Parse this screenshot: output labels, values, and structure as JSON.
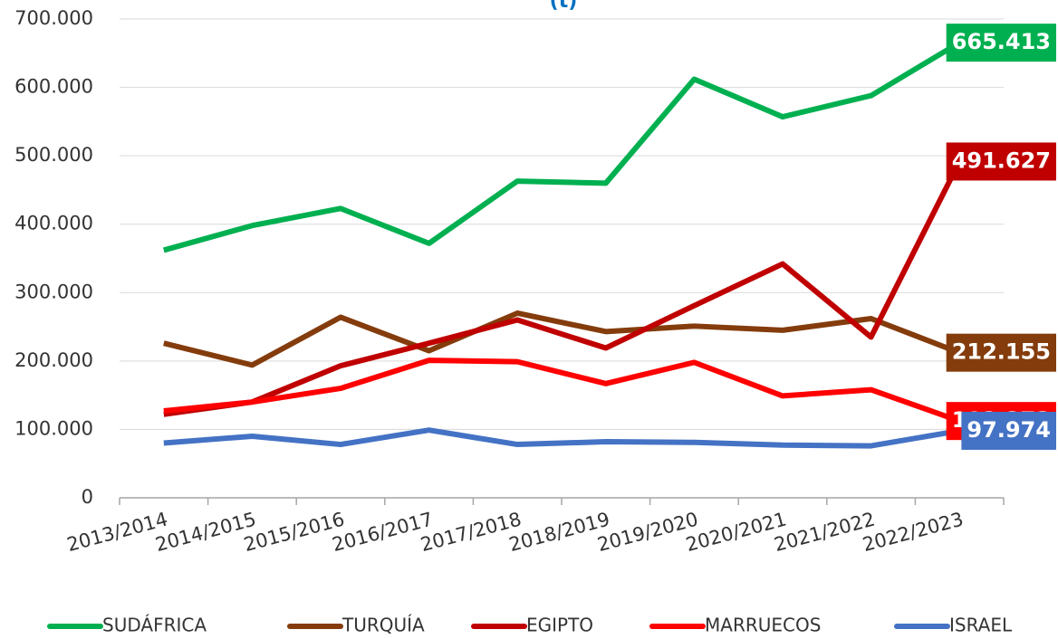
{
  "chart_data": {
    "type": "line",
    "title": "(t)",
    "categories": [
      "2013/2014",
      "2014/2015",
      "2015/2016",
      "2016/2017",
      "2017/2018",
      "2018/2019",
      "2019/2020",
      "2020/2021",
      "2021/2022",
      "2022/2023"
    ],
    "series": [
      {
        "name": "SUDÁFRICA",
        "color": "#00b050",
        "values": [
          362000,
          398000,
          423000,
          372000,
          463000,
          460000,
          612000,
          557000,
          588000,
          665413
        ],
        "value_labels": [
          null,
          null,
          null,
          null,
          null,
          null,
          null,
          null,
          null,
          "665.413"
        ]
      },
      {
        "name": "TURQUÍA",
        "color": "#843c0c",
        "values": [
          226000,
          194000,
          264000,
          215000,
          270000,
          243000,
          251000,
          245000,
          262000,
          212155
        ],
        "value_labels": [
          null,
          null,
          null,
          null,
          null,
          null,
          null,
          null,
          null,
          "212.155"
        ]
      },
      {
        "name": "EGIPTO",
        "color": "#c00000",
        "values": [
          122000,
          140000,
          193000,
          226000,
          260000,
          219000,
          281000,
          342000,
          235000,
          491627
        ],
        "value_labels": [
          null,
          null,
          null,
          null,
          null,
          null,
          null,
          null,
          null,
          "491.627"
        ]
      },
      {
        "name": "MARRUECOS",
        "color": "#ff0000",
        "values": [
          127000,
          140000,
          160000,
          201000,
          199000,
          167000,
          198000,
          149000,
          158000,
          112273
        ],
        "value_labels": [
          null,
          null,
          null,
          null,
          null,
          null,
          null,
          null,
          null,
          "112.273"
        ]
      },
      {
        "name": "ISRAEL",
        "color": "#4472c4",
        "values": [
          80000,
          90000,
          78000,
          99000,
          78000,
          82000,
          81000,
          77000,
          76000,
          97974
        ],
        "value_labels": [
          null,
          null,
          null,
          null,
          null,
          null,
          null,
          null,
          null,
          "97.974"
        ]
      }
    ],
    "ylim": [
      0,
      700000
    ],
    "yticks": [
      0,
      {
        "value": 100000,
        "label": "100.000"
      },
      {
        "value": 200000,
        "label": "200.000"
      },
      {
        "value": 300000,
        "label": "300.000"
      },
      {
        "value": 400000,
        "label": "400.000"
      },
      {
        "value": 500000,
        "label": "500.000"
      },
      {
        "value": 600000,
        "label": "600.000"
      },
      {
        "value": 700000,
        "label": "700.000"
      }
    ],
    "grid": true,
    "legend": "bottom"
  }
}
